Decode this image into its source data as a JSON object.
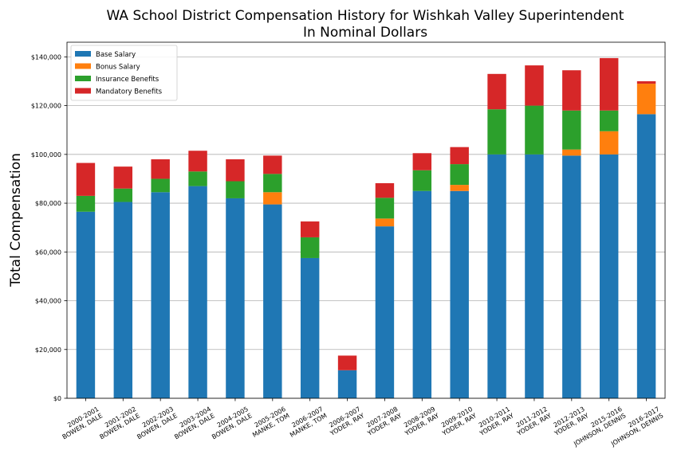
{
  "chart_data": {
    "type": "bar",
    "stacked": true,
    "title": "WA School District Compensation History for Wishkah Valley Superintendent",
    "subtitle": "In Nominal Dollars",
    "ylabel": "Total Compensation",
    "xlabel": "",
    "ylim": [
      0,
      146000
    ],
    "yticks": [
      0,
      20000,
      40000,
      60000,
      80000,
      100000,
      120000,
      140000
    ],
    "ytick_labels": [
      "$0",
      "$20,000",
      "$40,000",
      "$60,000",
      "$80,000",
      "$100,000",
      "$120,000",
      "$140,000"
    ],
    "grid": "y",
    "legend_position": "top-left",
    "categories": [
      [
        "2000-2001",
        "BOWEN, DALE"
      ],
      [
        "2001-2002",
        "BOWEN, DALE"
      ],
      [
        "2002-2003",
        "BOWEN, DALE"
      ],
      [
        "2003-2004",
        "BOWEN, DALE"
      ],
      [
        "2004-2005",
        "BOWEN, DALE"
      ],
      [
        "2005-2006",
        "MANKE, TOM"
      ],
      [
        "2006-2007",
        "MANKE, TOM"
      ],
      [
        "2006-2007",
        "YODER, RAY"
      ],
      [
        "2007-2008",
        "YODER, RAY"
      ],
      [
        "2008-2009",
        "YODER, RAY"
      ],
      [
        "2009-2010",
        "YODER, RAY"
      ],
      [
        "2010-2011",
        "YODER, RAY"
      ],
      [
        "2011-2012",
        "YODER, RAY"
      ],
      [
        "2012-2013",
        "YODER, RAY"
      ],
      [
        "2015-2016",
        "JOHNSON, DENNIS"
      ],
      [
        "2016-2017",
        "JOHNSON, DENNIS"
      ]
    ],
    "series": [
      {
        "name": "Base Salary",
        "color": "#1f77b4",
        "values": [
          76500,
          80500,
          84500,
          87000,
          82000,
          79500,
          57500,
          11500,
          70500,
          85000,
          85000,
          100000,
          100000,
          99500,
          100000,
          116500
        ]
      },
      {
        "name": "Bonus Salary",
        "color": "#ff7f0e",
        "values": [
          0,
          0,
          0,
          0,
          0,
          5000,
          0,
          0,
          3200,
          0,
          2500,
          0,
          0,
          2500,
          9500,
          12500
        ]
      },
      {
        "name": "Insurance Benefits",
        "color": "#2ca02c",
        "values": [
          6500,
          5500,
          5500,
          6000,
          7000,
          7500,
          8500,
          0,
          8500,
          8500,
          8500,
          18500,
          20000,
          16000,
          8500,
          0
        ]
      },
      {
        "name": "Mandatory Benefits",
        "color": "#d62728",
        "values": [
          13500,
          9000,
          8000,
          8500,
          9000,
          7500,
          6500,
          6000,
          6000,
          7000,
          7000,
          14500,
          16500,
          16500,
          21500,
          1000
        ]
      }
    ]
  }
}
